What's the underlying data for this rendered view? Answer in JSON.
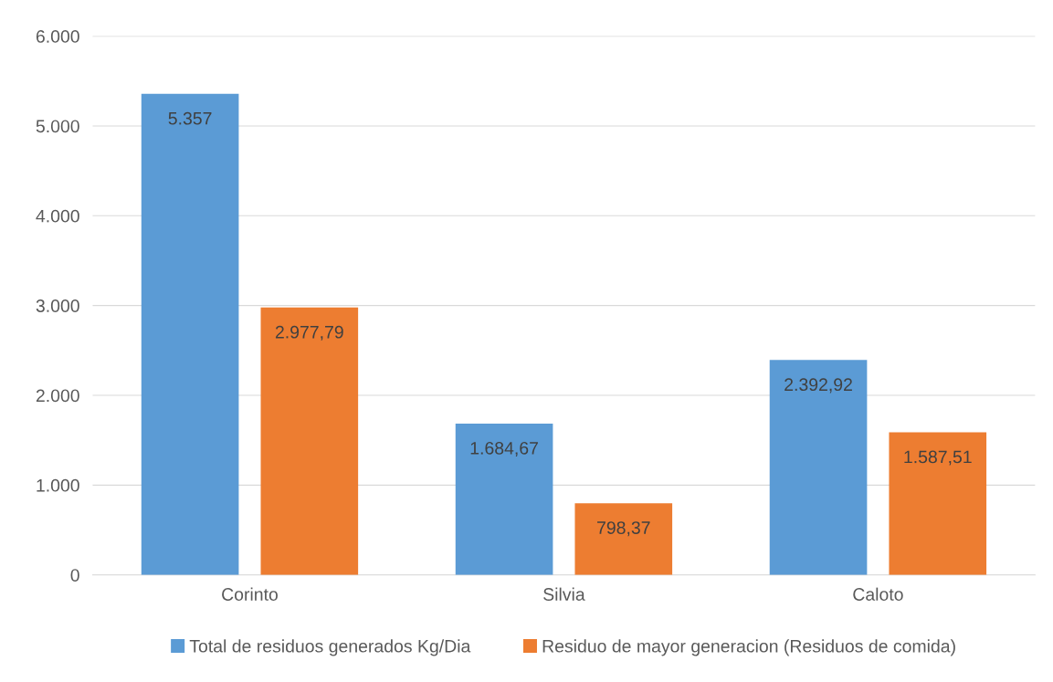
{
  "chart_data": {
    "type": "bar",
    "categories": [
      "Corinto",
      "Silvia",
      "Caloto"
    ],
    "series": [
      {
        "name": "Total de residuos generados Kg/Dia",
        "color": "#5b9bd5",
        "values": [
          5357,
          1684.67,
          2392.92
        ],
        "value_labels": [
          "5.357",
          "1.684,67",
          "2.392,92"
        ]
      },
      {
        "name": "Residuo de mayor generacion (Residuos de comida)",
        "color": "#ed7d31",
        "values": [
          2977.79,
          798.37,
          1587.51
        ],
        "value_labels": [
          "2.977,79",
          "798,37",
          "1.587,51"
        ]
      }
    ],
    "ylim": [
      0,
      6000
    ],
    "yticks": [
      0,
      {
        "value": 1000,
        "label": "1.000"
      },
      {
        "value": 2000,
        "label": "2.000"
      },
      {
        "value": 3000,
        "label": "3.000"
      },
      {
        "value": 4000,
        "label": "4.000"
      },
      {
        "value": 5000,
        "label": "5.000"
      },
      {
        "value": 6000,
        "label": "6.000"
      }
    ],
    "grid": "y",
    "legend": "bottom"
  }
}
